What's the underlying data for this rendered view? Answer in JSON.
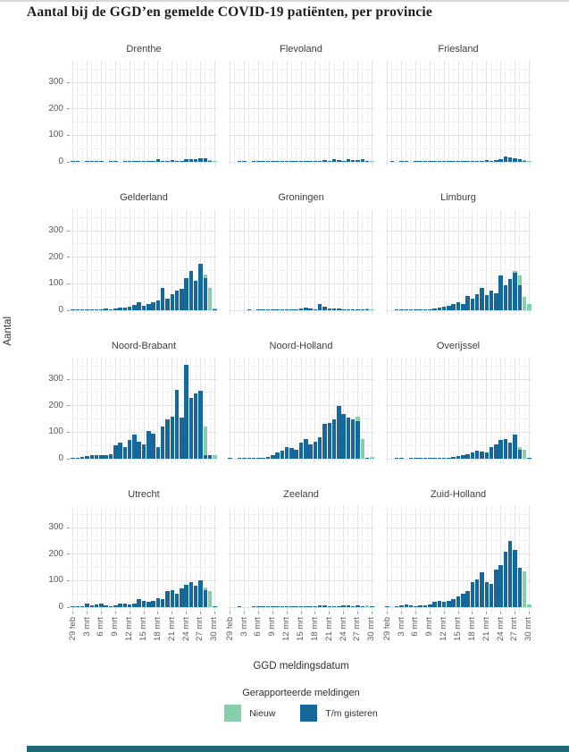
{
  "title": "Aantal bij de GGD’en gemelde COVID-19 patiënten, per provincie",
  "y_axis": {
    "label": "Aantal",
    "ticks": [
      0,
      100,
      200,
      300
    ]
  },
  "x_axis": {
    "label": "GGD meldingsdatum",
    "tick_labels": [
      "29 feb",
      "3 mrt",
      "6 mrt",
      "9 mrt",
      "12 mrt",
      "15 mrt",
      "18 mrt",
      "21 mrt",
      "24 mrt",
      "27 mrt",
      "30 mrt"
    ],
    "tick_indices": [
      0,
      3,
      6,
      9,
      12,
      15,
      18,
      21,
      24,
      27,
      30
    ]
  },
  "legend": {
    "title": "Gerapporteerde meldingen",
    "items": [
      {
        "label": "Nieuw",
        "color": "#87ceac"
      },
      {
        "label": "T/m gisteren",
        "color": "#16689b"
      }
    ]
  },
  "footer_bar": {
    "color": "#1f6a7a"
  },
  "chart_data": {
    "type": "bar",
    "stacked": true,
    "grid": true,
    "ylim": [
      0,
      381
    ],
    "y_ticks": [
      0,
      100,
      200,
      300
    ],
    "series_names": [
      "Nieuw",
      "T/m gisteren"
    ],
    "x_dates": [
      "29 feb",
      "1 mrt",
      "2 mrt",
      "3 mrt",
      "4 mrt",
      "5 mrt",
      "6 mrt",
      "7 mrt",
      "8 mrt",
      "9 mrt",
      "10 mrt",
      "11 mrt",
      "12 mrt",
      "13 mrt",
      "14 mrt",
      "15 mrt",
      "16 mrt",
      "17 mrt",
      "18 mrt",
      "19 mrt",
      "20 mrt",
      "21 mrt",
      "22 mrt",
      "23 mrt",
      "24 mrt",
      "25 mrt",
      "26 mrt",
      "27 mrt",
      "28 mrt",
      "29 mrt",
      "30 mrt"
    ],
    "x_tick_labels": [
      "29 feb",
      "3 mrt",
      "6 mrt",
      "9 mrt",
      "12 mrt",
      "15 mrt",
      "18 mrt",
      "21 mrt",
      "24 mrt",
      "27 mrt",
      "30 mrt"
    ],
    "x_tick_indices": [
      0,
      3,
      6,
      9,
      12,
      15,
      18,
      21,
      24,
      27,
      30
    ],
    "facets": [
      {
        "name": "Drenthe",
        "tm_gisteren": [
          1,
          1,
          0,
          1,
          1,
          1,
          1,
          0,
          1,
          1,
          0,
          1,
          1,
          2,
          2,
          3,
          3,
          5,
          9,
          4,
          5,
          6,
          5,
          4,
          11,
          10,
          9,
          13,
          12,
          4,
          0
        ],
        "nieuw": [
          0,
          0,
          0,
          0,
          0,
          0,
          0,
          0,
          0,
          0,
          0,
          0,
          0,
          0,
          0,
          0,
          0,
          0,
          0,
          0,
          0,
          0,
          0,
          0,
          0,
          0,
          0,
          0,
          0,
          2,
          4
        ]
      },
      {
        "name": "Flevoland",
        "tm_gisteren": [
          0,
          0,
          1,
          1,
          0,
          1,
          1,
          1,
          1,
          1,
          2,
          2,
          1,
          2,
          2,
          3,
          2,
          4,
          5,
          3,
          6,
          5,
          9,
          6,
          5,
          10,
          8,
          7,
          9,
          3,
          0
        ],
        "nieuw": [
          0,
          0,
          0,
          0,
          0,
          0,
          0,
          0,
          0,
          0,
          0,
          0,
          0,
          0,
          0,
          0,
          0,
          0,
          0,
          0,
          0,
          0,
          0,
          0,
          0,
          0,
          0,
          0,
          0,
          2,
          3
        ]
      },
      {
        "name": "Friesland",
        "tm_gisteren": [
          0,
          1,
          0,
          1,
          1,
          0,
          1,
          1,
          1,
          1,
          1,
          2,
          2,
          2,
          3,
          2,
          3,
          3,
          4,
          4,
          5,
          6,
          5,
          8,
          10,
          19,
          16,
          12,
          10,
          4,
          0
        ],
        "nieuw": [
          0,
          0,
          0,
          0,
          0,
          0,
          0,
          0,
          0,
          0,
          0,
          0,
          0,
          0,
          0,
          0,
          0,
          0,
          0,
          0,
          0,
          0,
          0,
          0,
          0,
          0,
          0,
          0,
          0,
          3,
          3
        ]
      },
      {
        "name": "Gelderland",
        "tm_gisteren": [
          2,
          1,
          2,
          3,
          4,
          3,
          5,
          6,
          5,
          8,
          10,
          9,
          14,
          20,
          31,
          18,
          25,
          30,
          36,
          85,
          45,
          60,
          75,
          80,
          120,
          150,
          112,
          175,
          120,
          0,
          5
        ],
        "nieuw": [
          0,
          0,
          0,
          0,
          0,
          0,
          0,
          0,
          0,
          0,
          0,
          0,
          0,
          0,
          0,
          0,
          0,
          0,
          0,
          0,
          0,
          0,
          0,
          0,
          0,
          0,
          0,
          0,
          15,
          85,
          3
        ]
      },
      {
        "name": "Groningen",
        "tm_gisteren": [
          0,
          0,
          0,
          0,
          1,
          0,
          1,
          1,
          1,
          2,
          2,
          3,
          5,
          3,
          2,
          8,
          10,
          7,
          3,
          24,
          12,
          8,
          7,
          8,
          5,
          3,
          2,
          3,
          3,
          2,
          0
        ],
        "nieuw": [
          0,
          0,
          0,
          0,
          0,
          0,
          0,
          0,
          0,
          0,
          0,
          0,
          0,
          0,
          0,
          0,
          0,
          0,
          0,
          0,
          0,
          0,
          0,
          0,
          0,
          0,
          0,
          0,
          0,
          4,
          2
        ]
      },
      {
        "name": "Limburg",
        "tm_gisteren": [
          0,
          0,
          1,
          1,
          1,
          2,
          2,
          3,
          4,
          5,
          8,
          10,
          14,
          18,
          25,
          30,
          22,
          55,
          45,
          62,
          85,
          58,
          75,
          65,
          130,
          95,
          118,
          140,
          95,
          0,
          0
        ],
        "nieuw": [
          0,
          0,
          0,
          0,
          0,
          0,
          0,
          0,
          0,
          0,
          0,
          0,
          0,
          0,
          0,
          0,
          0,
          0,
          0,
          0,
          0,
          0,
          0,
          0,
          0,
          0,
          0,
          10,
          35,
          50,
          25
        ]
      },
      {
        "name": "Noord-Brabant",
        "tm_gisteren": [
          5,
          4,
          6,
          10,
          14,
          15,
          15,
          14,
          16,
          50,
          60,
          45,
          70,
          90,
          65,
          55,
          105,
          95,
          45,
          120,
          150,
          160,
          260,
          155,
          355,
          230,
          245,
          258,
          15,
          13,
          0
        ],
        "nieuw": [
          0,
          0,
          0,
          0,
          0,
          0,
          0,
          0,
          0,
          0,
          0,
          0,
          0,
          0,
          0,
          0,
          0,
          0,
          0,
          0,
          0,
          0,
          0,
          0,
          0,
          0,
          0,
          0,
          105,
          0,
          15
        ]
      },
      {
        "name": "Noord-Holland",
        "tm_gisteren": [
          1,
          0,
          2,
          2,
          3,
          3,
          5,
          4,
          8,
          15,
          25,
          30,
          45,
          40,
          33,
          60,
          75,
          55,
          65,
          80,
          130,
          135,
          148,
          200,
          168,
          155,
          150,
          140,
          0,
          5,
          0
        ],
        "nieuw": [
          0,
          0,
          0,
          0,
          0,
          0,
          0,
          0,
          0,
          0,
          0,
          0,
          0,
          0,
          0,
          0,
          0,
          0,
          0,
          0,
          0,
          0,
          0,
          0,
          0,
          0,
          0,
          20,
          75,
          0,
          8
        ]
      },
      {
        "name": "Overijssel",
        "tm_gisteren": [
          0,
          0,
          1,
          1,
          0,
          1,
          1,
          1,
          2,
          2,
          3,
          3,
          5,
          5,
          8,
          10,
          15,
          18,
          25,
          30,
          28,
          25,
          45,
          55,
          70,
          75,
          62,
          90,
          35,
          0,
          3
        ],
        "nieuw": [
          0,
          0,
          0,
          0,
          0,
          0,
          0,
          0,
          0,
          0,
          0,
          0,
          0,
          0,
          0,
          0,
          0,
          0,
          0,
          0,
          0,
          0,
          0,
          0,
          0,
          0,
          0,
          0,
          8,
          35,
          0
        ]
      },
      {
        "name": "Utrecht",
        "tm_gisteren": [
          3,
          4,
          5,
          15,
          8,
          10,
          12,
          8,
          5,
          8,
          12,
          12,
          10,
          15,
          30,
          25,
          20,
          25,
          35,
          30,
          60,
          65,
          50,
          70,
          85,
          95,
          80,
          100,
          65,
          0,
          4
        ],
        "nieuw": [
          0,
          0,
          0,
          0,
          0,
          0,
          0,
          0,
          0,
          0,
          0,
          0,
          0,
          0,
          0,
          0,
          0,
          0,
          0,
          0,
          0,
          0,
          0,
          0,
          0,
          0,
          0,
          0,
          10,
          60,
          0
        ]
      },
      {
        "name": "Zeeland",
        "tm_gisteren": [
          0,
          0,
          1,
          0,
          0,
          1,
          1,
          1,
          2,
          1,
          2,
          2,
          1,
          3,
          2,
          2,
          3,
          3,
          5,
          8,
          6,
          4,
          3,
          4,
          6,
          6,
          5,
          7,
          3,
          0,
          2
        ],
        "nieuw": [
          0,
          0,
          0,
          0,
          0,
          0,
          0,
          0,
          0,
          0,
          0,
          0,
          0,
          0,
          0,
          0,
          0,
          0,
          0,
          0,
          0,
          0,
          0,
          0,
          0,
          0,
          0,
          0,
          0,
          8,
          2
        ]
      },
      {
        "name": "Zuid-Holland",
        "tm_gisteren": [
          3,
          0,
          2,
          8,
          10,
          6,
          5,
          8,
          8,
          10,
          20,
          25,
          20,
          25,
          30,
          40,
          50,
          60,
          95,
          105,
          130,
          95,
          88,
          140,
          160,
          210,
          250,
          215,
          150,
          0,
          0
        ],
        "nieuw": [
          0,
          0,
          0,
          0,
          0,
          0,
          0,
          0,
          0,
          0,
          0,
          0,
          0,
          0,
          0,
          0,
          0,
          0,
          0,
          0,
          0,
          0,
          0,
          0,
          0,
          0,
          0,
          0,
          0,
          135,
          10
        ]
      }
    ]
  }
}
